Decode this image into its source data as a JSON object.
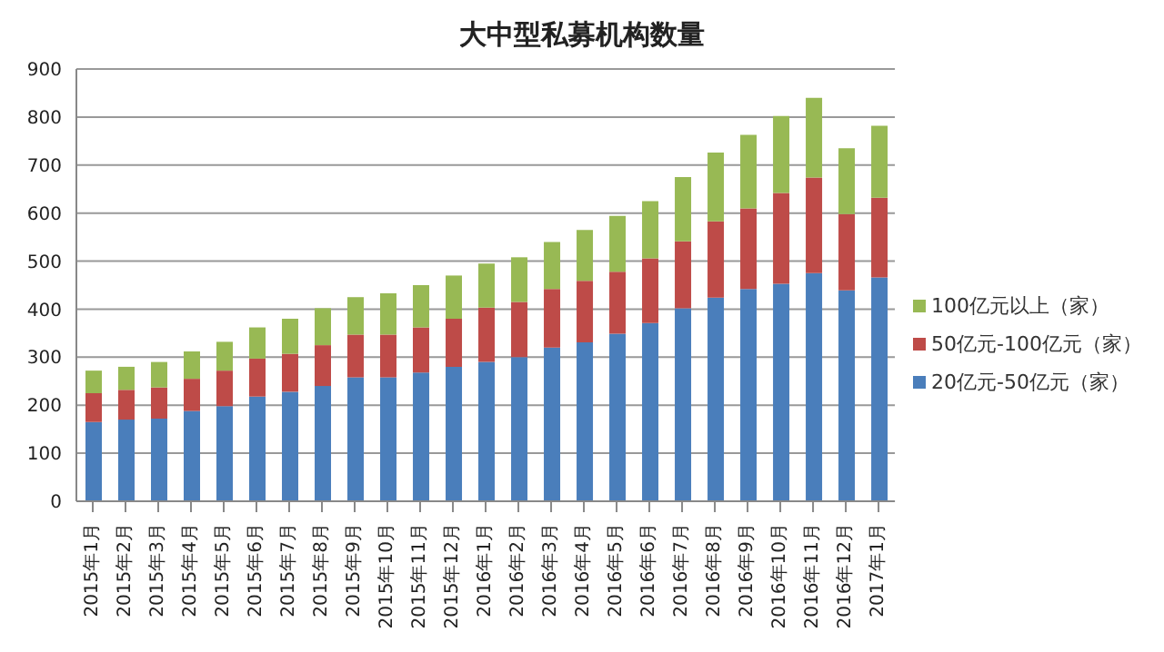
{
  "chart_data": {
    "type": "bar",
    "title": "大中型私募机构数量",
    "stacked": true,
    "categories": [
      "2015年1月",
      "2015年2月",
      "2015年3月",
      "2015年4月",
      "2015年5月",
      "2015年6月",
      "2015年7月",
      "2015年8月",
      "2015年9月",
      "2015年10月",
      "2015年11月",
      "2015年12月",
      "2016年1月",
      "2016年2月",
      "2016年3月",
      "2016年4月",
      "2016年5月",
      "2016年6月",
      "2016年7月",
      "2016年8月",
      "2016年9月",
      "2016年10月",
      "2016年11月",
      "2016年12月",
      "2017年1月"
    ],
    "series": [
      {
        "name": "20亿元-50亿元（家）",
        "color": "#4a7ebb",
        "values": [
          165,
          170,
          172,
          188,
          198,
          218,
          228,
          240,
          258,
          258,
          268,
          280,
          290,
          300,
          320,
          331,
          349,
          371,
          402,
          424,
          442,
          453,
          475,
          439,
          466
        ]
      },
      {
        "name": "50亿元-100亿元（家）",
        "color": "#be4b48",
        "values": [
          60,
          62,
          65,
          67,
          74,
          79,
          79,
          85,
          89,
          89,
          94,
          100,
          113,
          115,
          122,
          128,
          129,
          135,
          139,
          159,
          168,
          189,
          199,
          159,
          166
        ]
      },
      {
        "name": "100亿元以上（家）",
        "color": "#98b954",
        "values": [
          47,
          48,
          53,
          57,
          60,
          65,
          73,
          77,
          78,
          86,
          88,
          90,
          92,
          93,
          98,
          106,
          116,
          119,
          134,
          143,
          153,
          160,
          166,
          137,
          150
        ]
      }
    ],
    "ylim": [
      0,
      900
    ],
    "yticks": [
      0,
      100,
      200,
      300,
      400,
      500,
      600,
      700,
      800,
      900
    ],
    "grid": "y",
    "legend": "right"
  }
}
